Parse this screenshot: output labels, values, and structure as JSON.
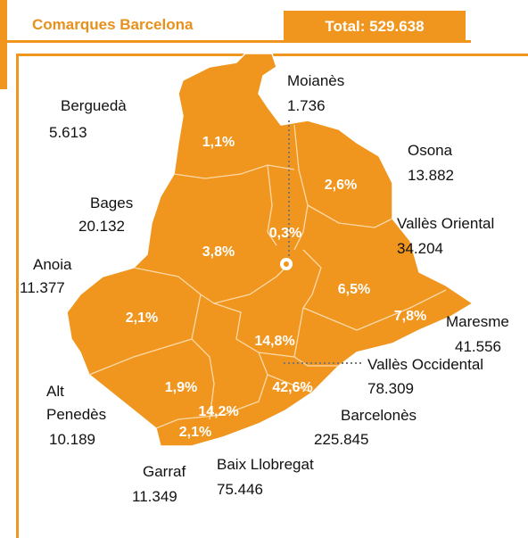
{
  "header": {
    "title": "Comarques Barcelona",
    "total": "Total: 529.638"
  },
  "regions": [
    {
      "name": "Berguedà",
      "value": "5.613",
      "share": "1,1%"
    },
    {
      "name": "Moianès",
      "value": "1.736",
      "share": "0,3%"
    },
    {
      "name": "Osona",
      "value": "13.882",
      "share": "2,6%"
    },
    {
      "name": "Bages",
      "value": "20.132",
      "share": "3,8%"
    },
    {
      "name": "Vallès Oriental",
      "value": "34.204",
      "share": "6,5%"
    },
    {
      "name": "Anoia",
      "value": "11.377",
      "share": "2,1%"
    },
    {
      "name": "Maresme",
      "value": "41.556",
      "share": "7,8%"
    },
    {
      "name": "Vallès Occidental",
      "value": "78.309",
      "share": "14,8%"
    },
    {
      "name": "Alt Penedès",
      "value": "10.189",
      "share": "1,9%"
    },
    {
      "name": "Barcelonès",
      "value": "225.845",
      "share": "42,6%"
    },
    {
      "name": "Baix Llobregat",
      "value": "75.446",
      "share": "14,2%"
    },
    {
      "name": "Garraf",
      "value": "11.349",
      "share": "2,1%"
    }
  ]
}
